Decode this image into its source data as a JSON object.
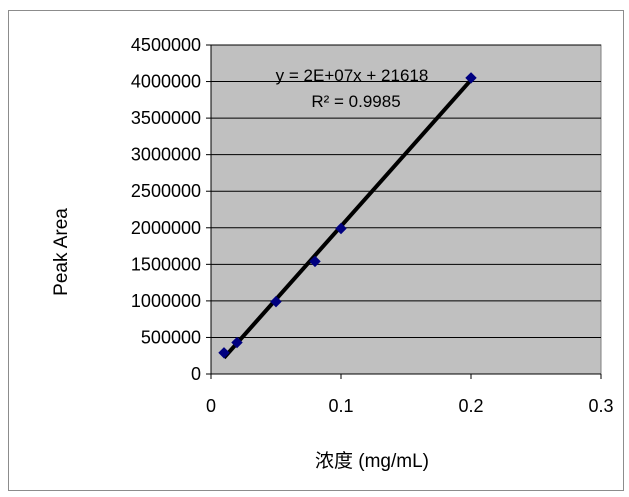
{
  "chart_data": {
    "type": "scatter",
    "xlabel": "浓度 (mg/mL)",
    "ylabel": "Peak Area",
    "xlim": [
      0,
      0.3
    ],
    "ylim": [
      0,
      4500000
    ],
    "x_ticks": [
      "0",
      "0.1",
      "0.2",
      "0.3"
    ],
    "y_ticks": [
      "0",
      "500000",
      "1000000",
      "1500000",
      "2000000",
      "2500000",
      "3000000",
      "3500000",
      "4000000",
      "4500000"
    ],
    "grid": "horizontal",
    "series": [
      {
        "x": [
          0.01,
          0.02,
          0.05,
          0.08,
          0.1,
          0.2
        ],
        "y": [
          290000,
          430000,
          990000,
          1540000,
          1990000,
          4050000
        ],
        "marker": "diamond",
        "color": "#000080"
      }
    ],
    "trendline": {
      "type": "linear",
      "x": [
        0.01,
        0.2
      ],
      "y": [
        221618,
        4021618
      ],
      "color": "#000000",
      "equation": "y = 2E+07x + 21618",
      "r_squared": "R² = 0.9985"
    },
    "plot_background": "#c0c0c0"
  }
}
